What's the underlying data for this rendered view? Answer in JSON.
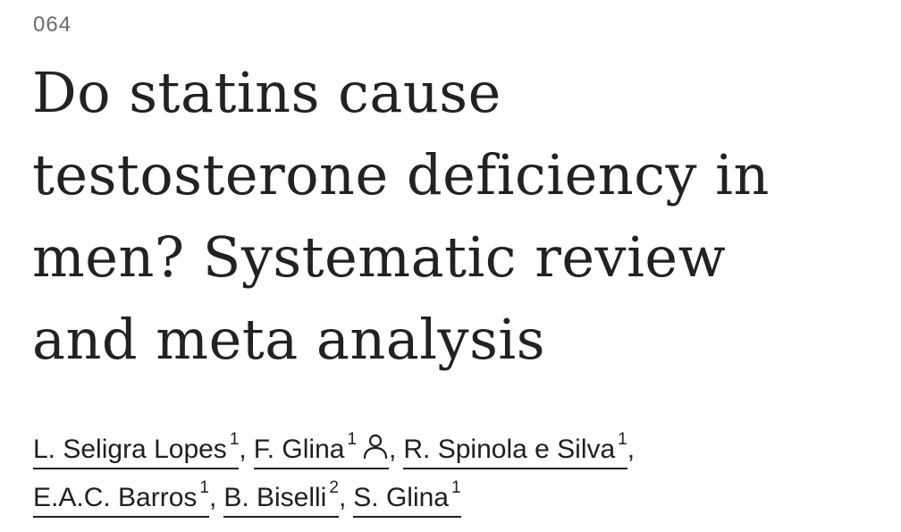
{
  "article": {
    "number": "064",
    "title_lines": [
      "Do statins cause",
      "testosterone deficiency in",
      "men? Systematic review",
      "and meta analysis"
    ]
  },
  "authors": [
    {
      "name": "L. Seligra Lopes",
      "affiliation": "1"
    },
    {
      "name": "F. Glina",
      "affiliation": "1",
      "icon": "person-icon"
    },
    {
      "name": "R. Spinola e Silva",
      "affiliation": "1"
    },
    {
      "name": "E.A.C. Barros",
      "affiliation": "1"
    },
    {
      "name": "B. Biselli",
      "affiliation": "2"
    },
    {
      "name": "S. Glina",
      "affiliation": "1"
    }
  ],
  "separator": ","
}
